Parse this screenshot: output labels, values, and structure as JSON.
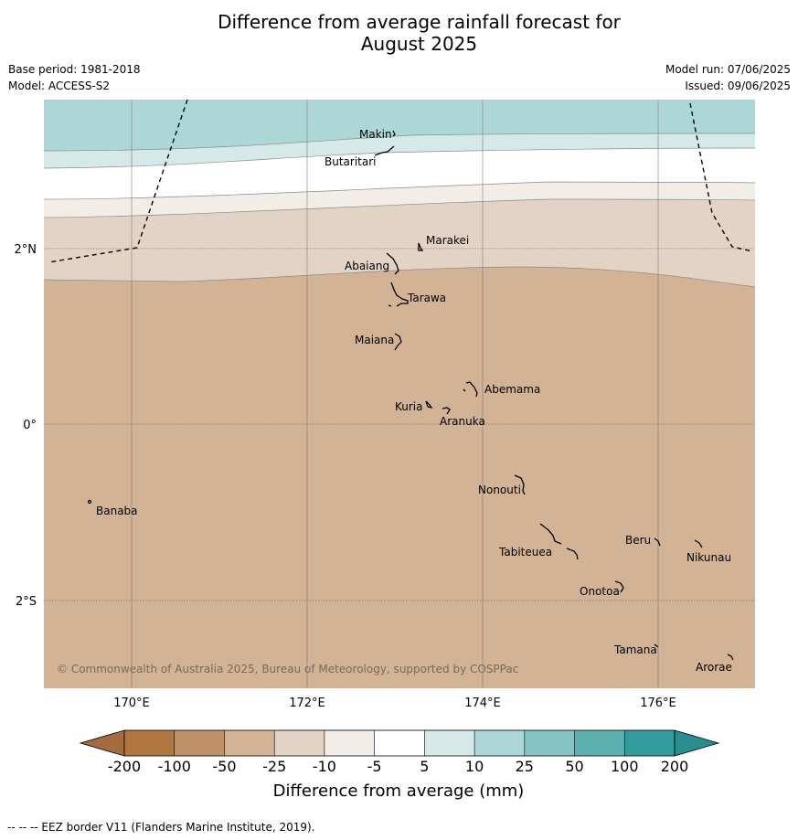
{
  "title_line1": "Difference from average rainfall forecast for",
  "title_line2": "August 2025",
  "meta": {
    "base_period": "Base period: 1981-2018",
    "model": "Model: ACCESS-S2",
    "model_run": "Model run: 07/06/2025",
    "issued": "Issued: 09/06/2025"
  },
  "copyright": "© Commonwealth of Australia 2025, Bureau of Meteorology, supported by COSPPac",
  "axes": {
    "lat_labels": [
      "2°N",
      "0°",
      "2°S"
    ],
    "lon_labels": [
      "170°E",
      "172°E",
      "174°E",
      "176°E"
    ]
  },
  "places": [
    {
      "name": "Makin"
    },
    {
      "name": "Butaritari"
    },
    {
      "name": "Marakei"
    },
    {
      "name": "Abaiang"
    },
    {
      "name": "Tarawa"
    },
    {
      "name": "Maiana"
    },
    {
      "name": "Abemama"
    },
    {
      "name": "Kuria"
    },
    {
      "name": "Aranuka"
    },
    {
      "name": "Nonouti"
    },
    {
      "name": "Banaba"
    },
    {
      "name": "Beru"
    },
    {
      "name": "Nikunau"
    },
    {
      "name": "Tabiteuea"
    },
    {
      "name": "Onotoa"
    },
    {
      "name": "Tamana"
    },
    {
      "name": "Arorae"
    }
  ],
  "colorbar": {
    "labels": [
      "-200",
      "-100",
      "-50",
      "-25",
      "-10",
      "-5",
      "5",
      "10",
      "25",
      "50",
      "100",
      "200"
    ],
    "colors": [
      "#b07840",
      "#c09068",
      "#d2b396",
      "#e3d3c4",
      "#f3ede8",
      "#ffffff",
      "#d6e9e9",
      "#add7d7",
      "#85c4c4",
      "#5cb0b0",
      "#339c9c"
    ],
    "end_colors": [
      "#a46c3c",
      "#2a8e8e"
    ],
    "label": "Difference from average (mm)"
  },
  "footer": "--  --  -- EEZ border V11 (Flanders Marine Institute, 2019).",
  "chart_data": {
    "type": "heatmap",
    "title": "Difference from average rainfall forecast for August 2025",
    "xlabel": "",
    "ylabel": "",
    "colorbar_label": "Difference from average (mm)",
    "x_ticks": [
      "170°E",
      "172°E",
      "174°E",
      "176°E"
    ],
    "y_ticks": [
      "2°N",
      "0°",
      "2°S"
    ],
    "bands": [
      {
        "range": "10 to 25",
        "region": "north of about 3.3°N"
      },
      {
        "range": "5 to 10",
        "region": "about 2.9°N to 3.3°N"
      },
      {
        "range": "-5 to 5",
        "region": "about 2.6°N to 2.9°N"
      },
      {
        "range": "-10 to -5",
        "region": "about 2.4°N to 2.6°N"
      },
      {
        "range": "-25 to -10",
        "region": "about 1.7°N to 2.4°N"
      },
      {
        "range": "-50 to -25",
        "region": "south of about 1.7°N"
      }
    ],
    "grid": true
  }
}
